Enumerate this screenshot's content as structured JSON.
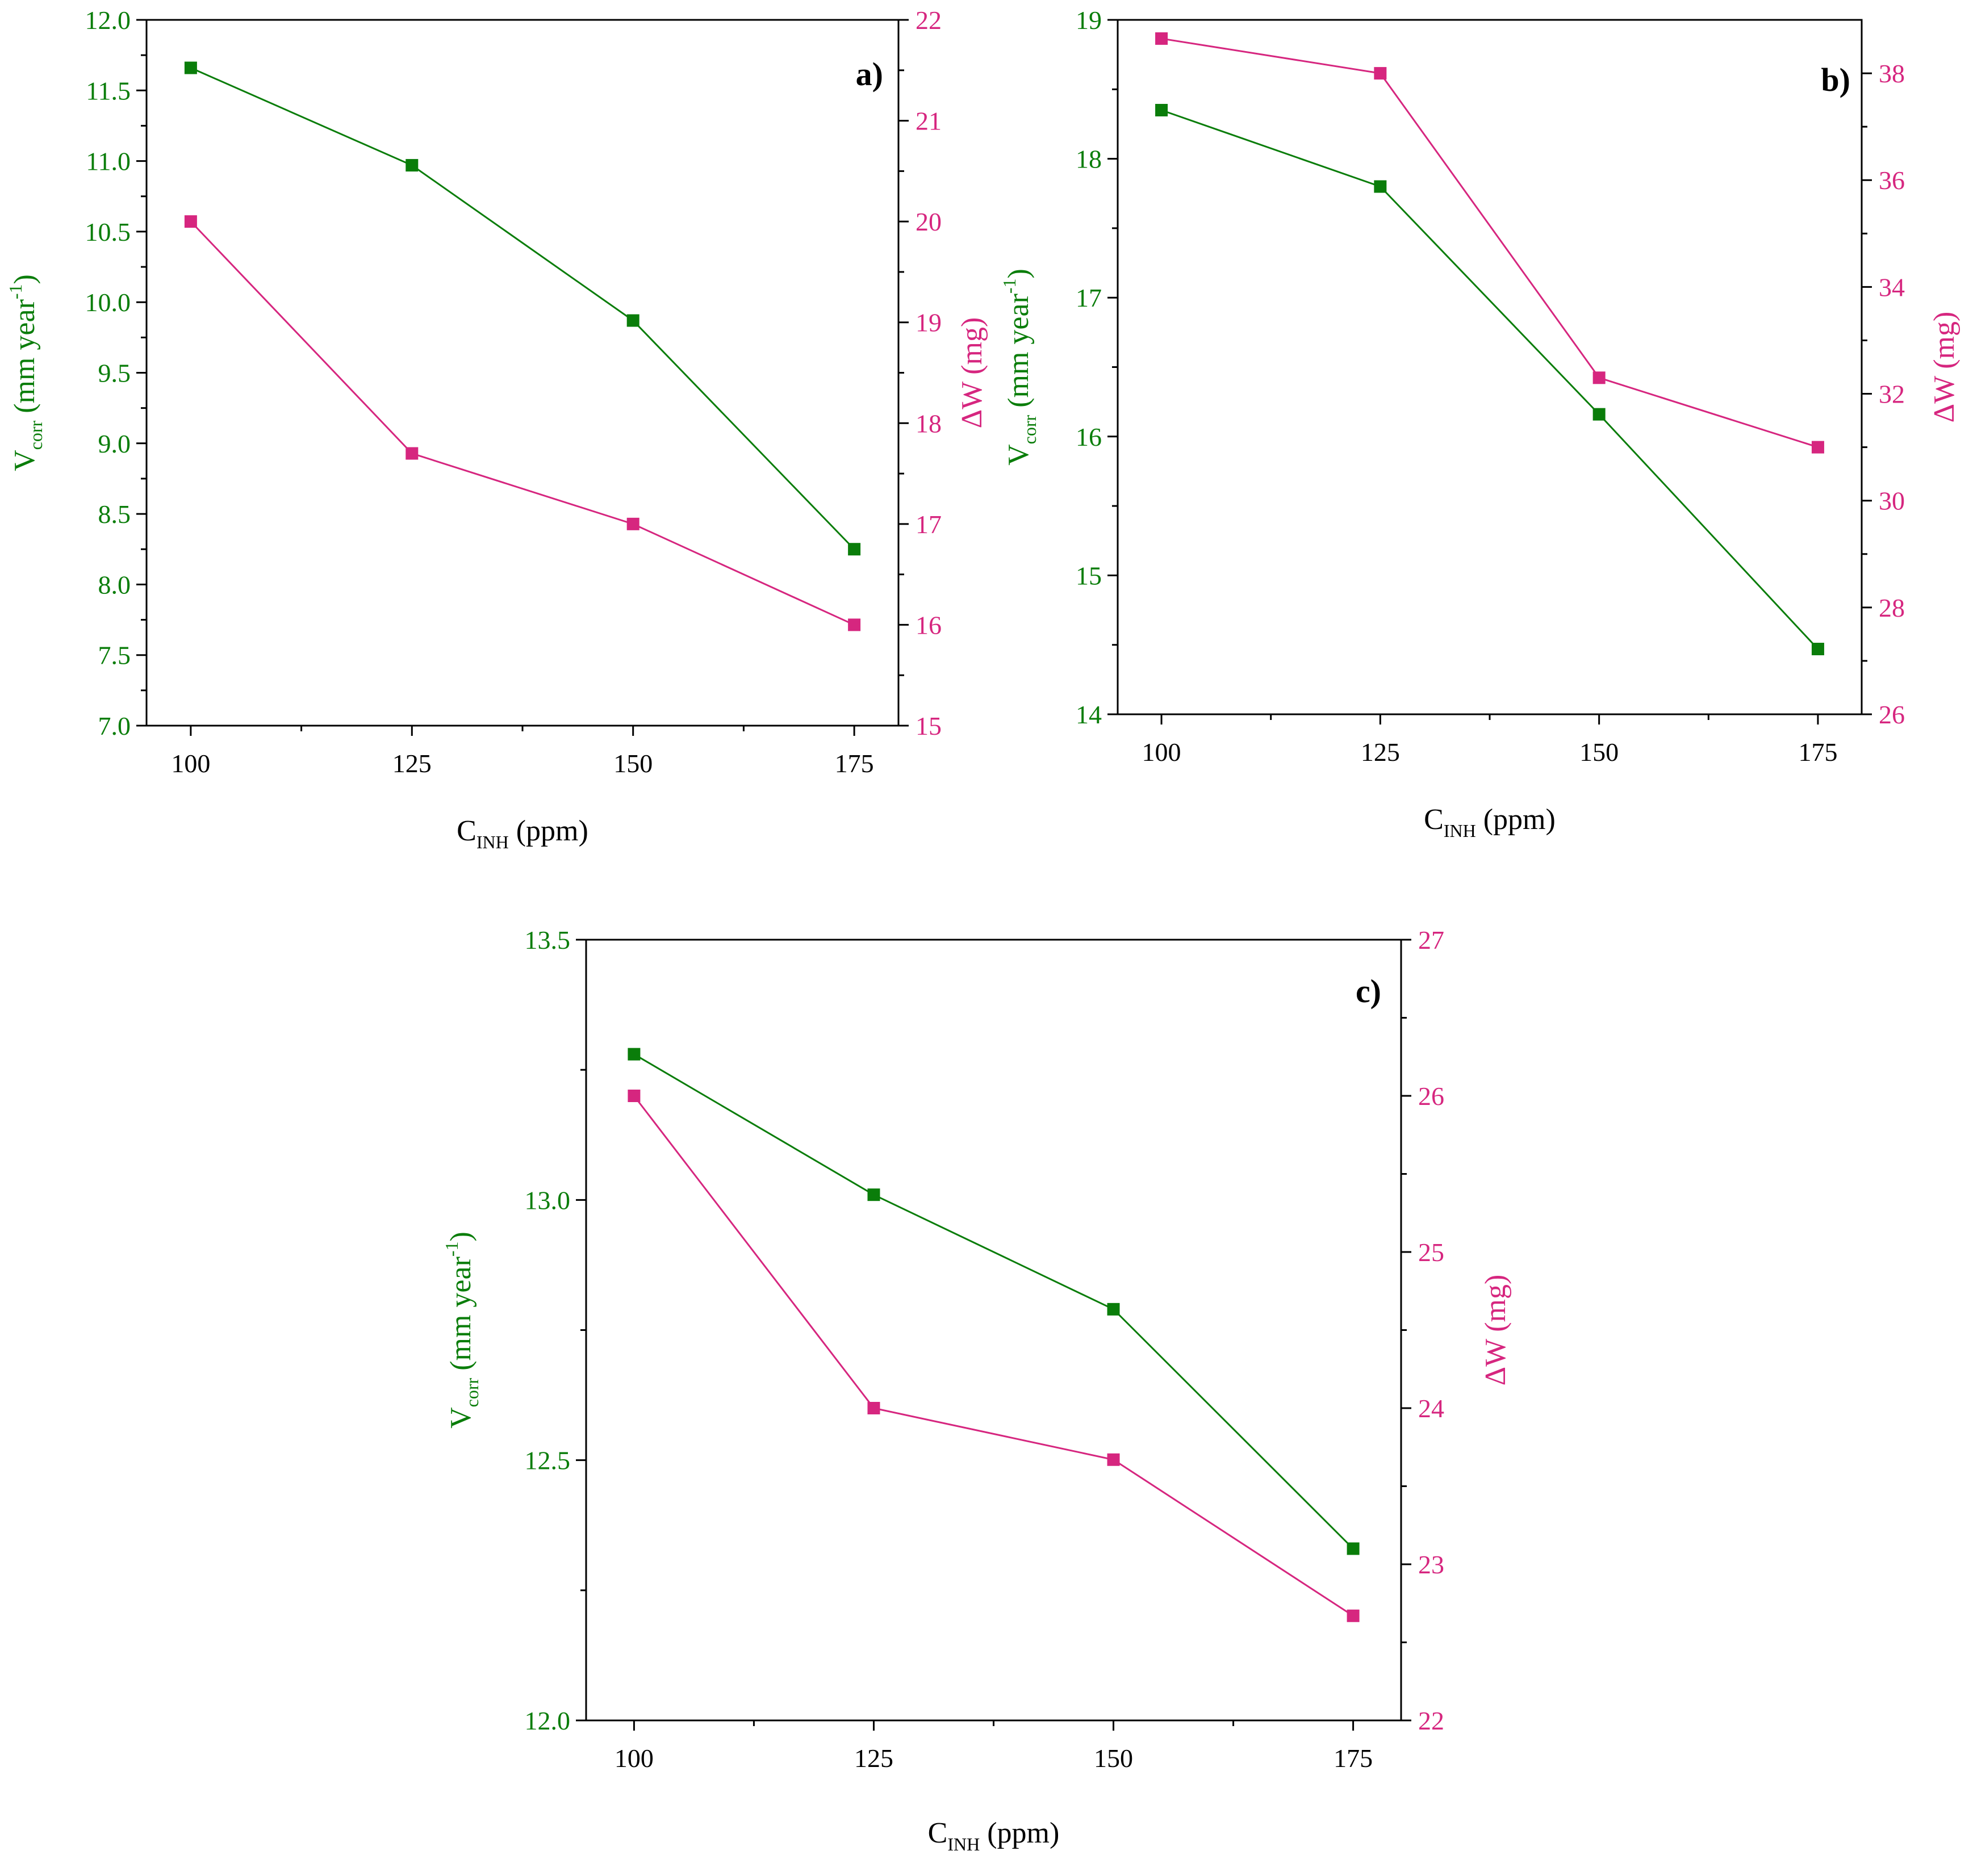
{
  "colors": {
    "green": "#0a7d0a",
    "magenta": "#d6267f",
    "axis": "#000000"
  },
  "chart_data": [
    {
      "type": "line",
      "label": "a)",
      "xlabel": {
        "main": "C",
        "sub": "INH",
        "rest": "(ppm)"
      },
      "ylabel": {
        "main": "V",
        "sub": "corr",
        "rest": "(mm year",
        "sup": "-1",
        "close": ")"
      },
      "y2label": "ΔW (mg)",
      "x": [
        100,
        125,
        150,
        175
      ],
      "xlim": [
        95,
        180
      ],
      "xticks": [
        100,
        125,
        150,
        175
      ],
      "xtick_labels": [
        "100",
        "125",
        "150",
        "175"
      ],
      "ylim": [
        7.0,
        12.0
      ],
      "yticks": [
        7.0,
        7.5,
        8.0,
        8.5,
        9.0,
        9.5,
        10.0,
        10.5,
        11.0,
        11.5,
        12.0
      ],
      "ytick_labels": [
        "7.0",
        "7.5",
        "8.0",
        "8.5",
        "9.0",
        "9.5",
        "10.0",
        "10.5",
        "11.0",
        "11.5",
        "12.0"
      ],
      "y2lim": [
        15,
        22
      ],
      "y2ticks": [
        15,
        16,
        17,
        18,
        19,
        20,
        21,
        22
      ],
      "y2tick_labels": [
        "15",
        "16",
        "17",
        "18",
        "19",
        "20",
        "21",
        "22"
      ],
      "series": [
        {
          "name": "Vcorr",
          "axis": "left",
          "color": "#0a7d0a",
          "values": [
            11.66,
            10.97,
            9.87,
            8.25
          ]
        },
        {
          "name": "ΔW",
          "axis": "right",
          "color": "#d6267f",
          "values": [
            20.0,
            17.7,
            17.0,
            16.0
          ]
        }
      ]
    },
    {
      "type": "line",
      "label": "b)",
      "xlabel": {
        "main": "C",
        "sub": "INH",
        "rest": "(ppm)"
      },
      "ylabel": {
        "main": "V",
        "sub": "corr",
        "rest": "(mm year",
        "sup": "-1",
        "close": ")"
      },
      "y2label": "ΔW (mg)",
      "x": [
        100,
        125,
        150,
        175
      ],
      "xlim": [
        95,
        180
      ],
      "xticks": [
        100,
        125,
        150,
        175
      ],
      "xtick_labels": [
        "100",
        "125",
        "150",
        "175"
      ],
      "ylim": [
        14,
        19
      ],
      "yticks": [
        14,
        15,
        16,
        17,
        18,
        19
      ],
      "ytick_labels": [
        "14",
        "15",
        "16",
        "17",
        "18",
        "19"
      ],
      "y2lim": [
        26,
        39
      ],
      "y2ticks": [
        26,
        28,
        30,
        32,
        34,
        36,
        38
      ],
      "y2tick_labels": [
        "26",
        "28",
        "30",
        "32",
        "34",
        "36",
        "38"
      ],
      "series": [
        {
          "name": "Vcorr",
          "axis": "left",
          "color": "#0a7d0a",
          "values": [
            18.35,
            17.8,
            16.16,
            14.47
          ]
        },
        {
          "name": "ΔW",
          "axis": "right",
          "color": "#d6267f",
          "values": [
            38.65,
            38.0,
            32.3,
            31.0
          ]
        }
      ]
    },
    {
      "type": "line",
      "label": "c)",
      "xlabel": {
        "main": "C",
        "sub": "INH",
        "rest": "(ppm)"
      },
      "ylabel": {
        "main": "V",
        "sub": "corr",
        "rest": "(mm year",
        "sup": "-1",
        "close": ")"
      },
      "y2label": "ΔW (mg)",
      "x": [
        100,
        125,
        150,
        175
      ],
      "xlim": [
        95,
        180
      ],
      "xticks": [
        100,
        125,
        150,
        175
      ],
      "xtick_labels": [
        "100",
        "125",
        "150",
        "175"
      ],
      "ylim": [
        12.0,
        13.5
      ],
      "yticks": [
        12.0,
        12.5,
        13.0,
        13.5
      ],
      "ytick_labels": [
        "12.0",
        "12.5",
        "13.0",
        "13.5"
      ],
      "y2lim": [
        22,
        27
      ],
      "y2ticks": [
        22,
        23,
        24,
        25,
        26,
        27
      ],
      "y2tick_labels": [
        "22",
        "23",
        "24",
        "25",
        "26",
        "27"
      ],
      "series": [
        {
          "name": "Vcorr",
          "axis": "left",
          "color": "#0a7d0a",
          "values": [
            13.28,
            13.01,
            12.79,
            12.33
          ]
        },
        {
          "name": "ΔW",
          "axis": "right",
          "color": "#d6267f",
          "values": [
            26.0,
            24.0,
            23.67,
            22.67
          ]
        }
      ]
    }
  ]
}
